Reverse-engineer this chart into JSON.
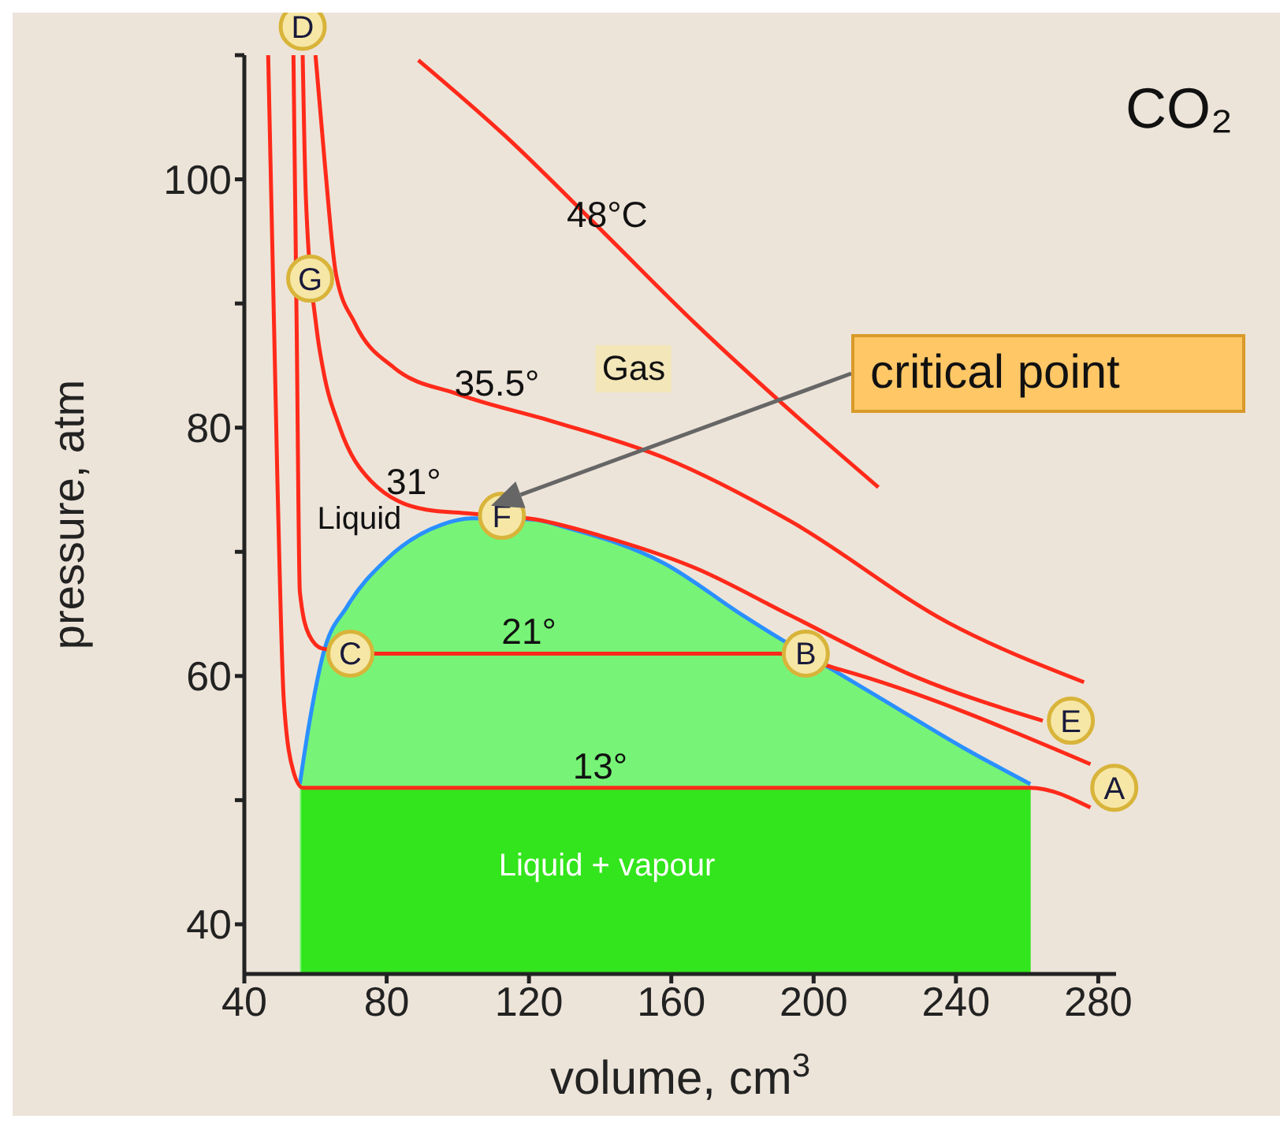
{
  "chart_data": {
    "type": "line",
    "xlabel": "volume, cm$^{3}$",
    "ylabel": "pressure, atm",
    "marker": "none",
    "xlim": [
      40,
      285
    ],
    "ylim": [
      36,
      110
    ],
    "xticks": [
      40,
      80,
      120,
      160,
      200,
      240,
      280
    ],
    "yticks": [
      40,
      {
        "value": 50,
        "label": null
      },
      60,
      {
        "value": 70,
        "label": null
      },
      80,
      {
        "value": 90,
        "label": null
      },
      100,
      {
        "value": 110,
        "label": null
      }
    ],
    "series": [
      {
        "type": "area",
        "color": "#77f477",
        "x": [
          55.6,
          58.2,
          62.2,
          68.9,
          80,
          95.6,
          104,
          121,
          131.1,
          157.8,
          180,
          190,
          206,
          220,
          242.2,
          260.9
        ],
        "values": [
          51.3,
          56.1,
          61.8,
          65.6,
          69.4,
          72.2,
          72.7,
          72.6,
          71.9,
          69.1,
          64.9,
          63.1,
          60.4,
          58,
          54.2,
          51.3
        ]
      },
      {
        "type": "area",
        "color": "#33e51c",
        "x": [
          56,
          261
        ],
        "values": [
          51,
          51
        ]
      },
      {
        "type": "line",
        "color": "#2a90ff",
        "x": [
          55.6,
          58.2,
          62.2,
          68.9,
          80,
          95.6,
          104,
          121,
          131.1,
          157.8,
          180,
          190,
          206,
          220,
          242.2,
          260.9
        ],
        "values": [
          51.3,
          56.1,
          61.8,
          65.6,
          69.4,
          72.2,
          72.7,
          72.6,
          71.9,
          69.1,
          64.9,
          63.1,
          60.4,
          58,
          54.2,
          51.3
        ]
      },
      {
        "type": "line",
        "color": "#ff2a1a",
        "x": [
          46.7,
          49.3,
          51.1,
          53.8,
          56.4,
          260.9,
          277.8
        ],
        "values": [
          110,
          75.7,
          58,
          52.3,
          51,
          51,
          49.4
        ]
      },
      {
        "type": "line",
        "color": "#ff2a1a",
        "x": [
          53.8,
          54.7,
          55.6,
          58.2,
          62,
          76,
          190,
          207.6,
          277.8
        ],
        "values": [
          110,
          88.4,
          66.8,
          63.3,
          62.2,
          61.8,
          61.8,
          60.5,
          52.9
        ]
      },
      {
        "type": "line",
        "color": "#ff2a1a",
        "x": [
          56.4,
          57.3,
          60.3,
          62.2,
          66.7,
          75.6,
          91.1,
          103,
          122,
          140,
          166.7,
          193.3,
          228.9,
          264.4
        ],
        "values": [
          110,
          98.5,
          88,
          84.6,
          80.1,
          75.7,
          73.4,
          73.1,
          72.6,
          71.3,
          68.7,
          64.9,
          59.9,
          56.4
        ]
      },
      {
        "type": "line",
        "color": "#ff2a1a",
        "x": [
          60,
          62.7,
          65.8,
          71.1,
          82.2,
          100,
          126.7,
          157.8,
          193.3,
          237.8,
          276
        ],
        "values": [
          110,
          101,
          92.3,
          88.4,
          84.8,
          82.7,
          80.5,
          77.6,
          72.5,
          64.3,
          59.5
        ]
      },
      {
        "type": "line",
        "color": "#ff2a1a",
        "x": [
          88.9,
          113.3,
          140,
          166.7,
          193.3,
          218.2
        ],
        "values": [
          109.6,
          103.5,
          96,
          88.4,
          81.4,
          75.2
        ]
      }
    ],
    "annotations": [
      "CO₂",
      "Gas",
      "Liquid",
      "Liquid + vapour",
      "critical point",
      {
        "text": "48°C",
        "x": 142,
        "y": 95.4
      },
      {
        "text": "35.5°",
        "x": 111,
        "y": 81.8
      },
      {
        "text": "31°",
        "x": 87.6,
        "y": 73.9
      },
      {
        "text": "21°",
        "x": 120,
        "y": 61.8
      },
      {
        "text": "13°",
        "x": 140,
        "y": 51
      },
      {
        "text": "D",
        "x": 56.4,
        "y": 110
      },
      {
        "text": "G",
        "x": 58.5,
        "y": 92
      },
      {
        "text": "F",
        "x": 112.4,
        "y": 72.9
      },
      {
        "text": "C",
        "x": 69.8,
        "y": 61.8
      },
      {
        "text": "B",
        "x": 197.8,
        "y": 61.8
      },
      {
        "text": "E",
        "x": 272.3,
        "y": 56.4
      },
      {
        "text": "A",
        "x": 284.5,
        "y": 51
      }
    ]
  }
}
